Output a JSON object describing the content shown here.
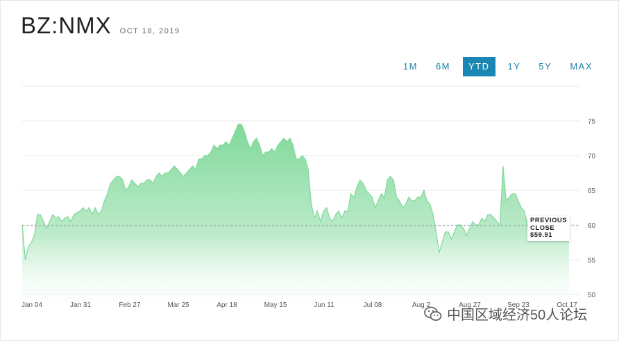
{
  "header": {
    "symbol": "BZ:NMX",
    "date": "OCT 18, 2019"
  },
  "ranges": [
    "1M",
    "6M",
    "YTD",
    "1Y",
    "5Y",
    "MAX"
  ],
  "active_range": "YTD",
  "colors": {
    "accent": "#1a86b3",
    "area_top": "#7fd89a",
    "area_bottom": "#ffffff",
    "line": "#7fd89a"
  },
  "callout": {
    "line1": "PREVIOUS",
    "line2": "CLOSE",
    "line3": "$59.91"
  },
  "watermark": {
    "text": "中国区域经济50人论坛"
  },
  "chart_data": {
    "type": "area",
    "x_tick_labels": [
      "Jan 04",
      "Jan 31",
      "Feb 27",
      "Mar 25",
      "Apr 18",
      "May 15",
      "Jun 11",
      "Jul 08",
      "Aug 2",
      "Aug 27",
      "Sep 23",
      "Oct 17"
    ],
    "y_tick_labels": [
      "50",
      "55",
      "60",
      "65",
      "70",
      "75"
    ],
    "ylim": [
      50,
      75
    ],
    "grid": true,
    "previous_close": 59.91,
    "series": [
      {
        "values": [
          60.0,
          55.0,
          56.8,
          57.5,
          58.5,
          61.5,
          61.5,
          60.5,
          59.5,
          60.5,
          61.5,
          61.0,
          61.2,
          60.5,
          61.0,
          61.2,
          60.5,
          61.5,
          61.8,
          62.0,
          62.5,
          62.0,
          62.5,
          61.5,
          62.5,
          61.5,
          62.0,
          63.5,
          64.5,
          66.0,
          66.5,
          67.0,
          67.0,
          66.5,
          65.0,
          65.5,
          66.5,
          66.0,
          65.5,
          66.0,
          66.0,
          66.5,
          66.5,
          66.0,
          67.0,
          67.5,
          67.0,
          67.5,
          67.5,
          68.0,
          68.5,
          68.0,
          67.5,
          67.0,
          67.5,
          68.0,
          68.5,
          68.0,
          69.5,
          69.5,
          70.0,
          70.0,
          70.5,
          71.5,
          71.0,
          71.5,
          71.5,
          72.0,
          71.5,
          72.5,
          73.5,
          74.5,
          74.5,
          73.5,
          72.0,
          71.0,
          72.0,
          72.5,
          71.5,
          70.0,
          70.5,
          70.5,
          71.0,
          70.5,
          71.5,
          72.0,
          72.5,
          72.0,
          72.5,
          71.5,
          69.5,
          69.5,
          70.0,
          69.5,
          68.0,
          63.0,
          61.0,
          62.0,
          60.5,
          62.0,
          62.5,
          61.0,
          60.5,
          61.5,
          62.0,
          61.0,
          62.0,
          62.0,
          64.5,
          64.0,
          65.5,
          66.5,
          66.0,
          65.0,
          64.5,
          64.0,
          62.5,
          63.5,
          64.5,
          64.0,
          66.5,
          67.0,
          66.5,
          64.0,
          63.5,
          62.5,
          63.0,
          64.0,
          63.5,
          63.5,
          64.0,
          64.0,
          65.0,
          63.5,
          63.0,
          61.5,
          59.0,
          56.0,
          57.5,
          59.0,
          59.0,
          58.0,
          59.0,
          60.0,
          60.0,
          59.5,
          58.5,
          59.5,
          60.5,
          60.0,
          60.0,
          61.0,
          60.5,
          61.5,
          61.5,
          61.0,
          60.5,
          60.0,
          68.5,
          63.5,
          64.0,
          64.5,
          64.5,
          63.5,
          62.5,
          62.0,
          59.91
        ]
      }
    ]
  }
}
